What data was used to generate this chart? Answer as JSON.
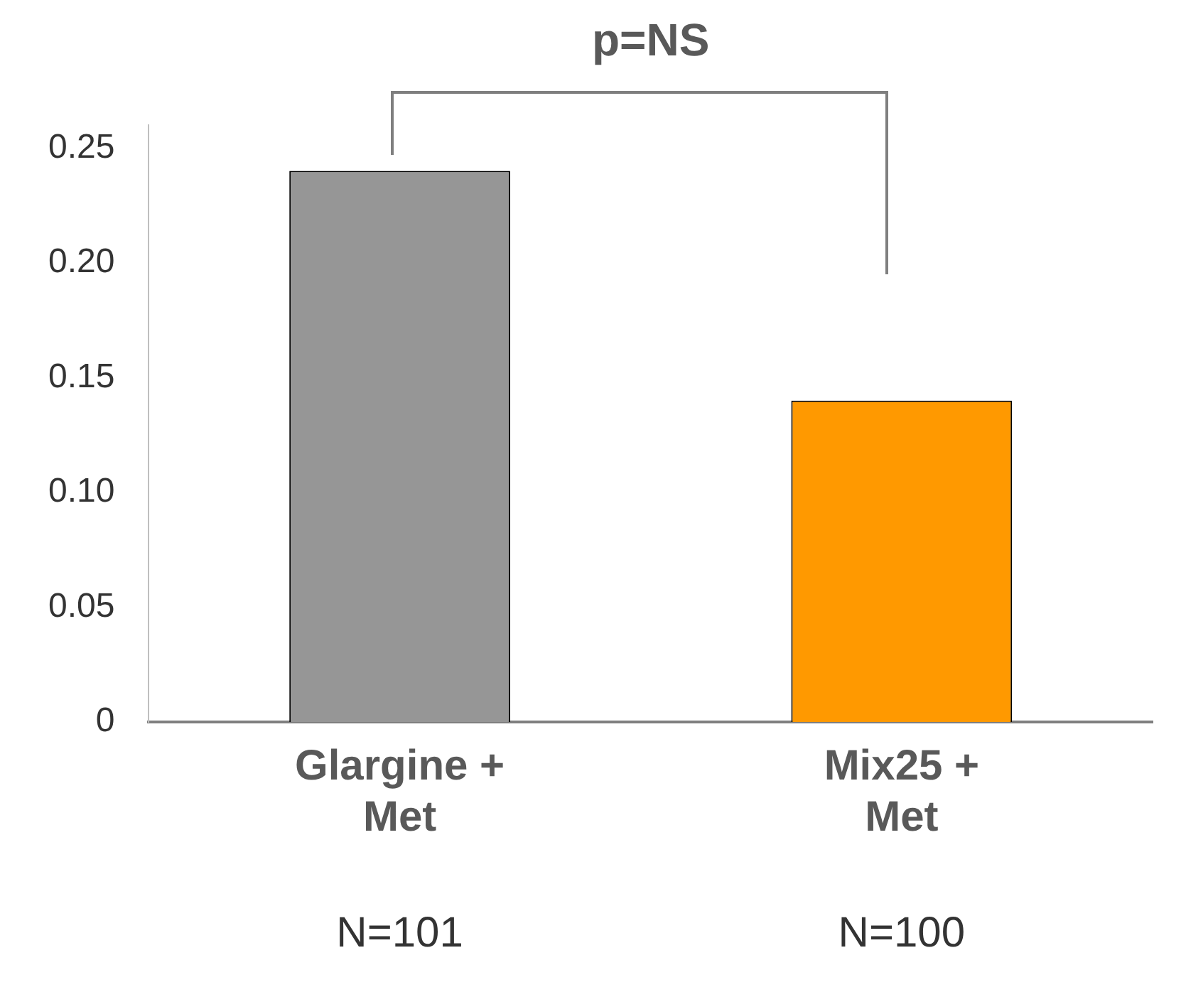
{
  "chart_data": {
    "type": "bar",
    "categories": [
      "Glargine + Met",
      "Mix25 + Met"
    ],
    "values": [
      0.24,
      0.14
    ],
    "colors": [
      "#969696",
      "#ff9900"
    ],
    "ylim": [
      0,
      0.26
    ],
    "yticks": [
      0,
      {
        "value": 0.05,
        "label": "0.05"
      },
      {
        "value": 0.1,
        "label": "0.10"
      },
      {
        "value": 0.15,
        "label": "0.15"
      },
      {
        "value": 0.2,
        "label": "0.20"
      },
      0.25
    ],
    "annotations": [
      "p=NS",
      "N=101",
      "N=100"
    ],
    "grid": false,
    "legend": false
  }
}
